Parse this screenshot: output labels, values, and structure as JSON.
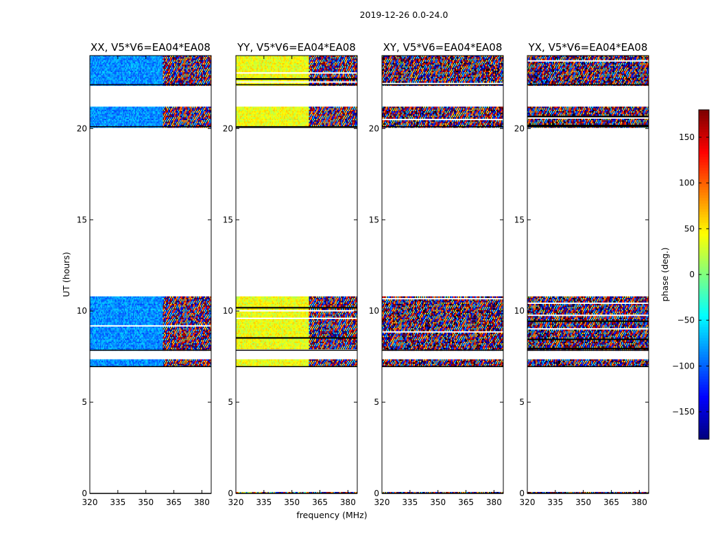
{
  "figure": {
    "suptitle": "2019-12-26 0.0-24.0"
  },
  "chart_data": {
    "type": "heatmap",
    "xlabel": "frequency (MHz)",
    "ylabel": "UT (hours)",
    "xlim": [
      320,
      385
    ],
    "ylim": [
      0,
      24
    ],
    "xticks": [
      320,
      335,
      350,
      365,
      380
    ],
    "yticks": [
      0,
      5,
      10,
      15,
      20
    ],
    "colorbar": {
      "label": "phase (deg.)",
      "range": [
        -180,
        180
      ],
      "ticks": [
        -150,
        -100,
        -50,
        0,
        50,
        100,
        150
      ],
      "tick_labels": [
        "−150",
        "−100",
        "−50",
        "0",
        "50",
        "100",
        "150"
      ],
      "colormap": "jet"
    },
    "time_blocks_hours": [
      [
        0.0,
        0.08
      ],
      [
        6.95,
        7.35
      ],
      [
        7.85,
        10.8
      ],
      [
        20.1,
        21.2
      ],
      [
        22.4,
        24.0
      ]
    ],
    "coherent_band_mhz": [
      320,
      359
    ],
    "panels": [
      {
        "title": "XX, V5*V6=EA04*EA08",
        "mean_phase_deg": -85,
        "coherent": true
      },
      {
        "title": "YY, V5*V6=EA04*EA08",
        "mean_phase_deg": 40,
        "coherent": true
      },
      {
        "title": "XY, V5*V6=EA04*EA08",
        "mean_phase_deg": null,
        "coherent": false
      },
      {
        "title": "YX, V5*V6=EA04*EA08",
        "mean_phase_deg": null,
        "coherent": false
      }
    ]
  }
}
